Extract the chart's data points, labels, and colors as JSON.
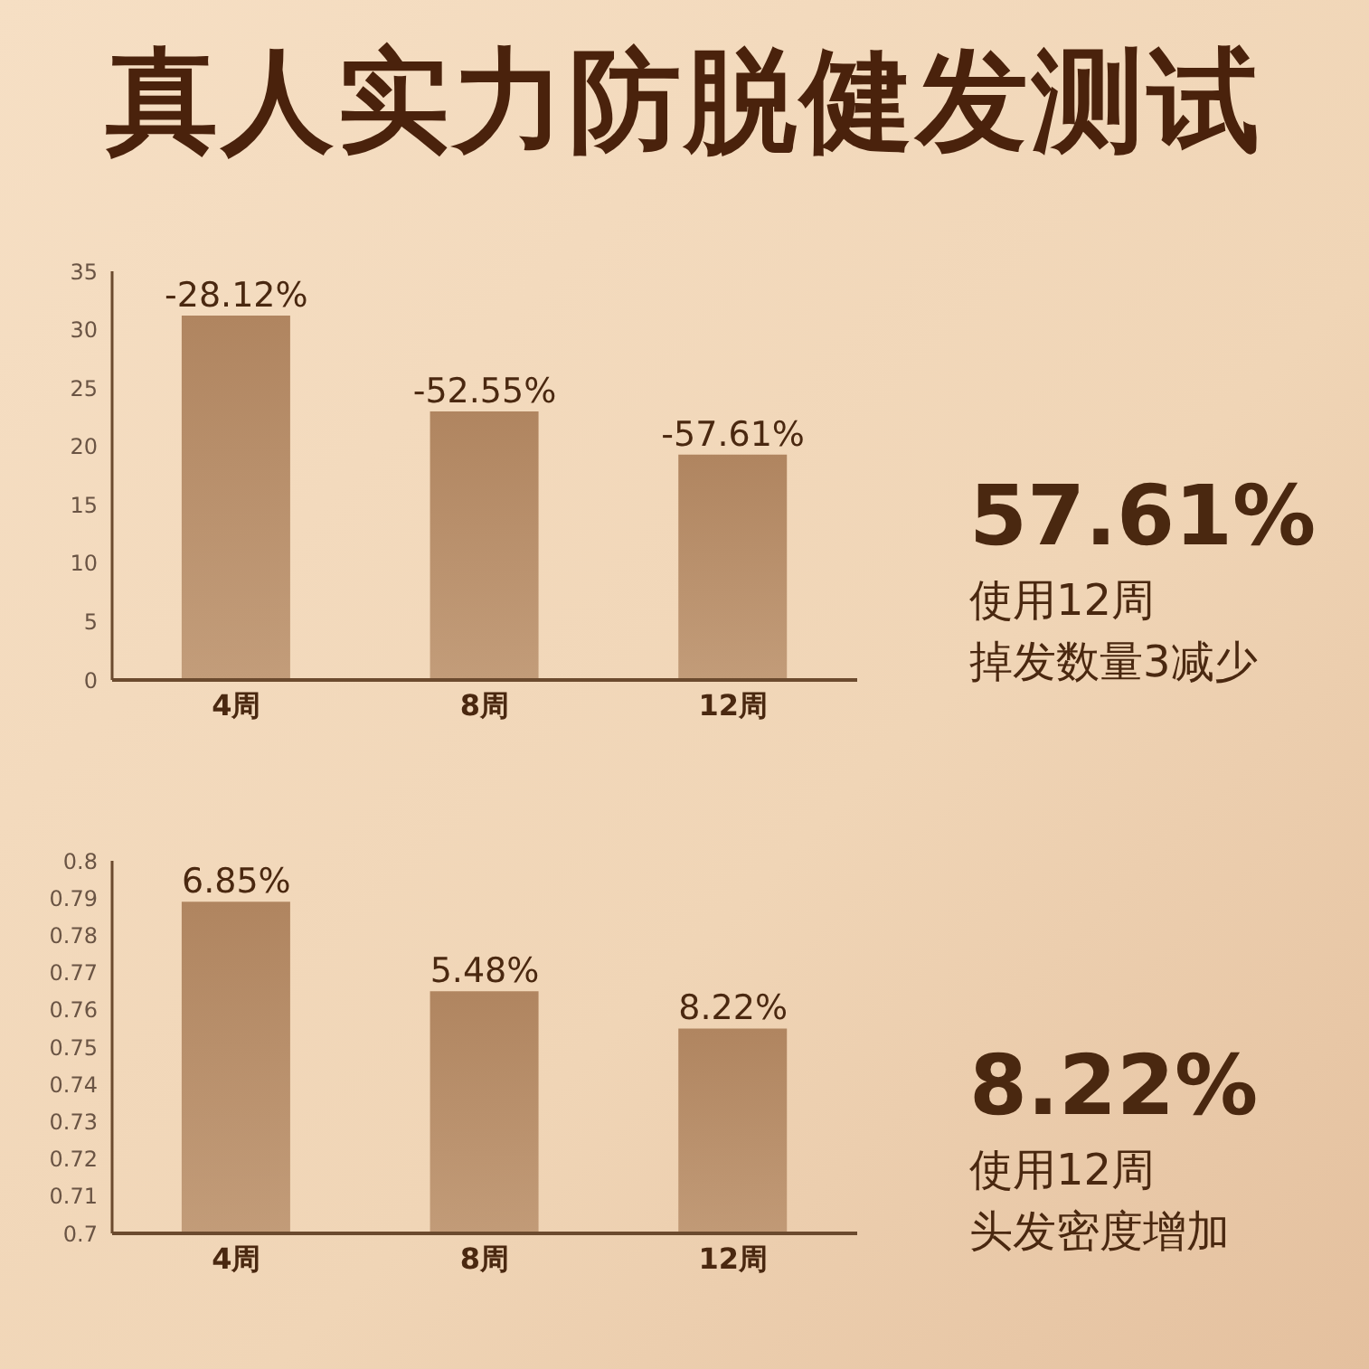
{
  "chart_data": [
    {
      "type": "bar",
      "title": "真人实力防脱健发测试",
      "categories": [
        "4周",
        "8周",
        "12周"
      ],
      "values": [
        31.2,
        23,
        19.3
      ],
      "color": "#b08560",
      "ylim": [
        0,
        35
      ],
      "yticks": [
        0,
        5,
        10,
        15,
        20,
        25,
        30,
        35
      ],
      "grid": false,
      "legend": false,
      "annotations": [
        {
          "text": "-28.12%",
          "x": "4周",
          "y": 31.2
        },
        {
          "text": "-52.55%",
          "x": "8周",
          "y": 23
        },
        {
          "text": "-57.61%",
          "x": "12周",
          "y": 19.3
        }
      ]
    },
    {
      "type": "other",
      "annotations": [
        "57.61%",
        "使用12周",
        "掉发数量3减少"
      ]
    },
    {
      "type": "bar",
      "categories": [
        "4周",
        "8周",
        "12周"
      ],
      "values": [
        0.789,
        0.765,
        0.755
      ],
      "color": "#b08560",
      "ylim": [
        0.7,
        0.8
      ],
      "yticks": [
        0.7,
        0.71,
        0.72,
        0.73,
        0.74,
        0.75,
        0.76,
        0.77,
        0.78,
        0.79,
        0.8
      ],
      "grid": false,
      "legend": false,
      "annotations": [
        {
          "text": "6.85%",
          "x": "4周",
          "y": 0.789
        },
        {
          "text": "5.48%",
          "x": "8周",
          "y": 0.765
        },
        {
          "text": "8.22%",
          "x": "12周",
          "y": 0.755
        }
      ]
    },
    {
      "type": "other",
      "annotations": [
        "8.22%",
        "使用12周",
        "头发密度增加"
      ]
    }
  ]
}
